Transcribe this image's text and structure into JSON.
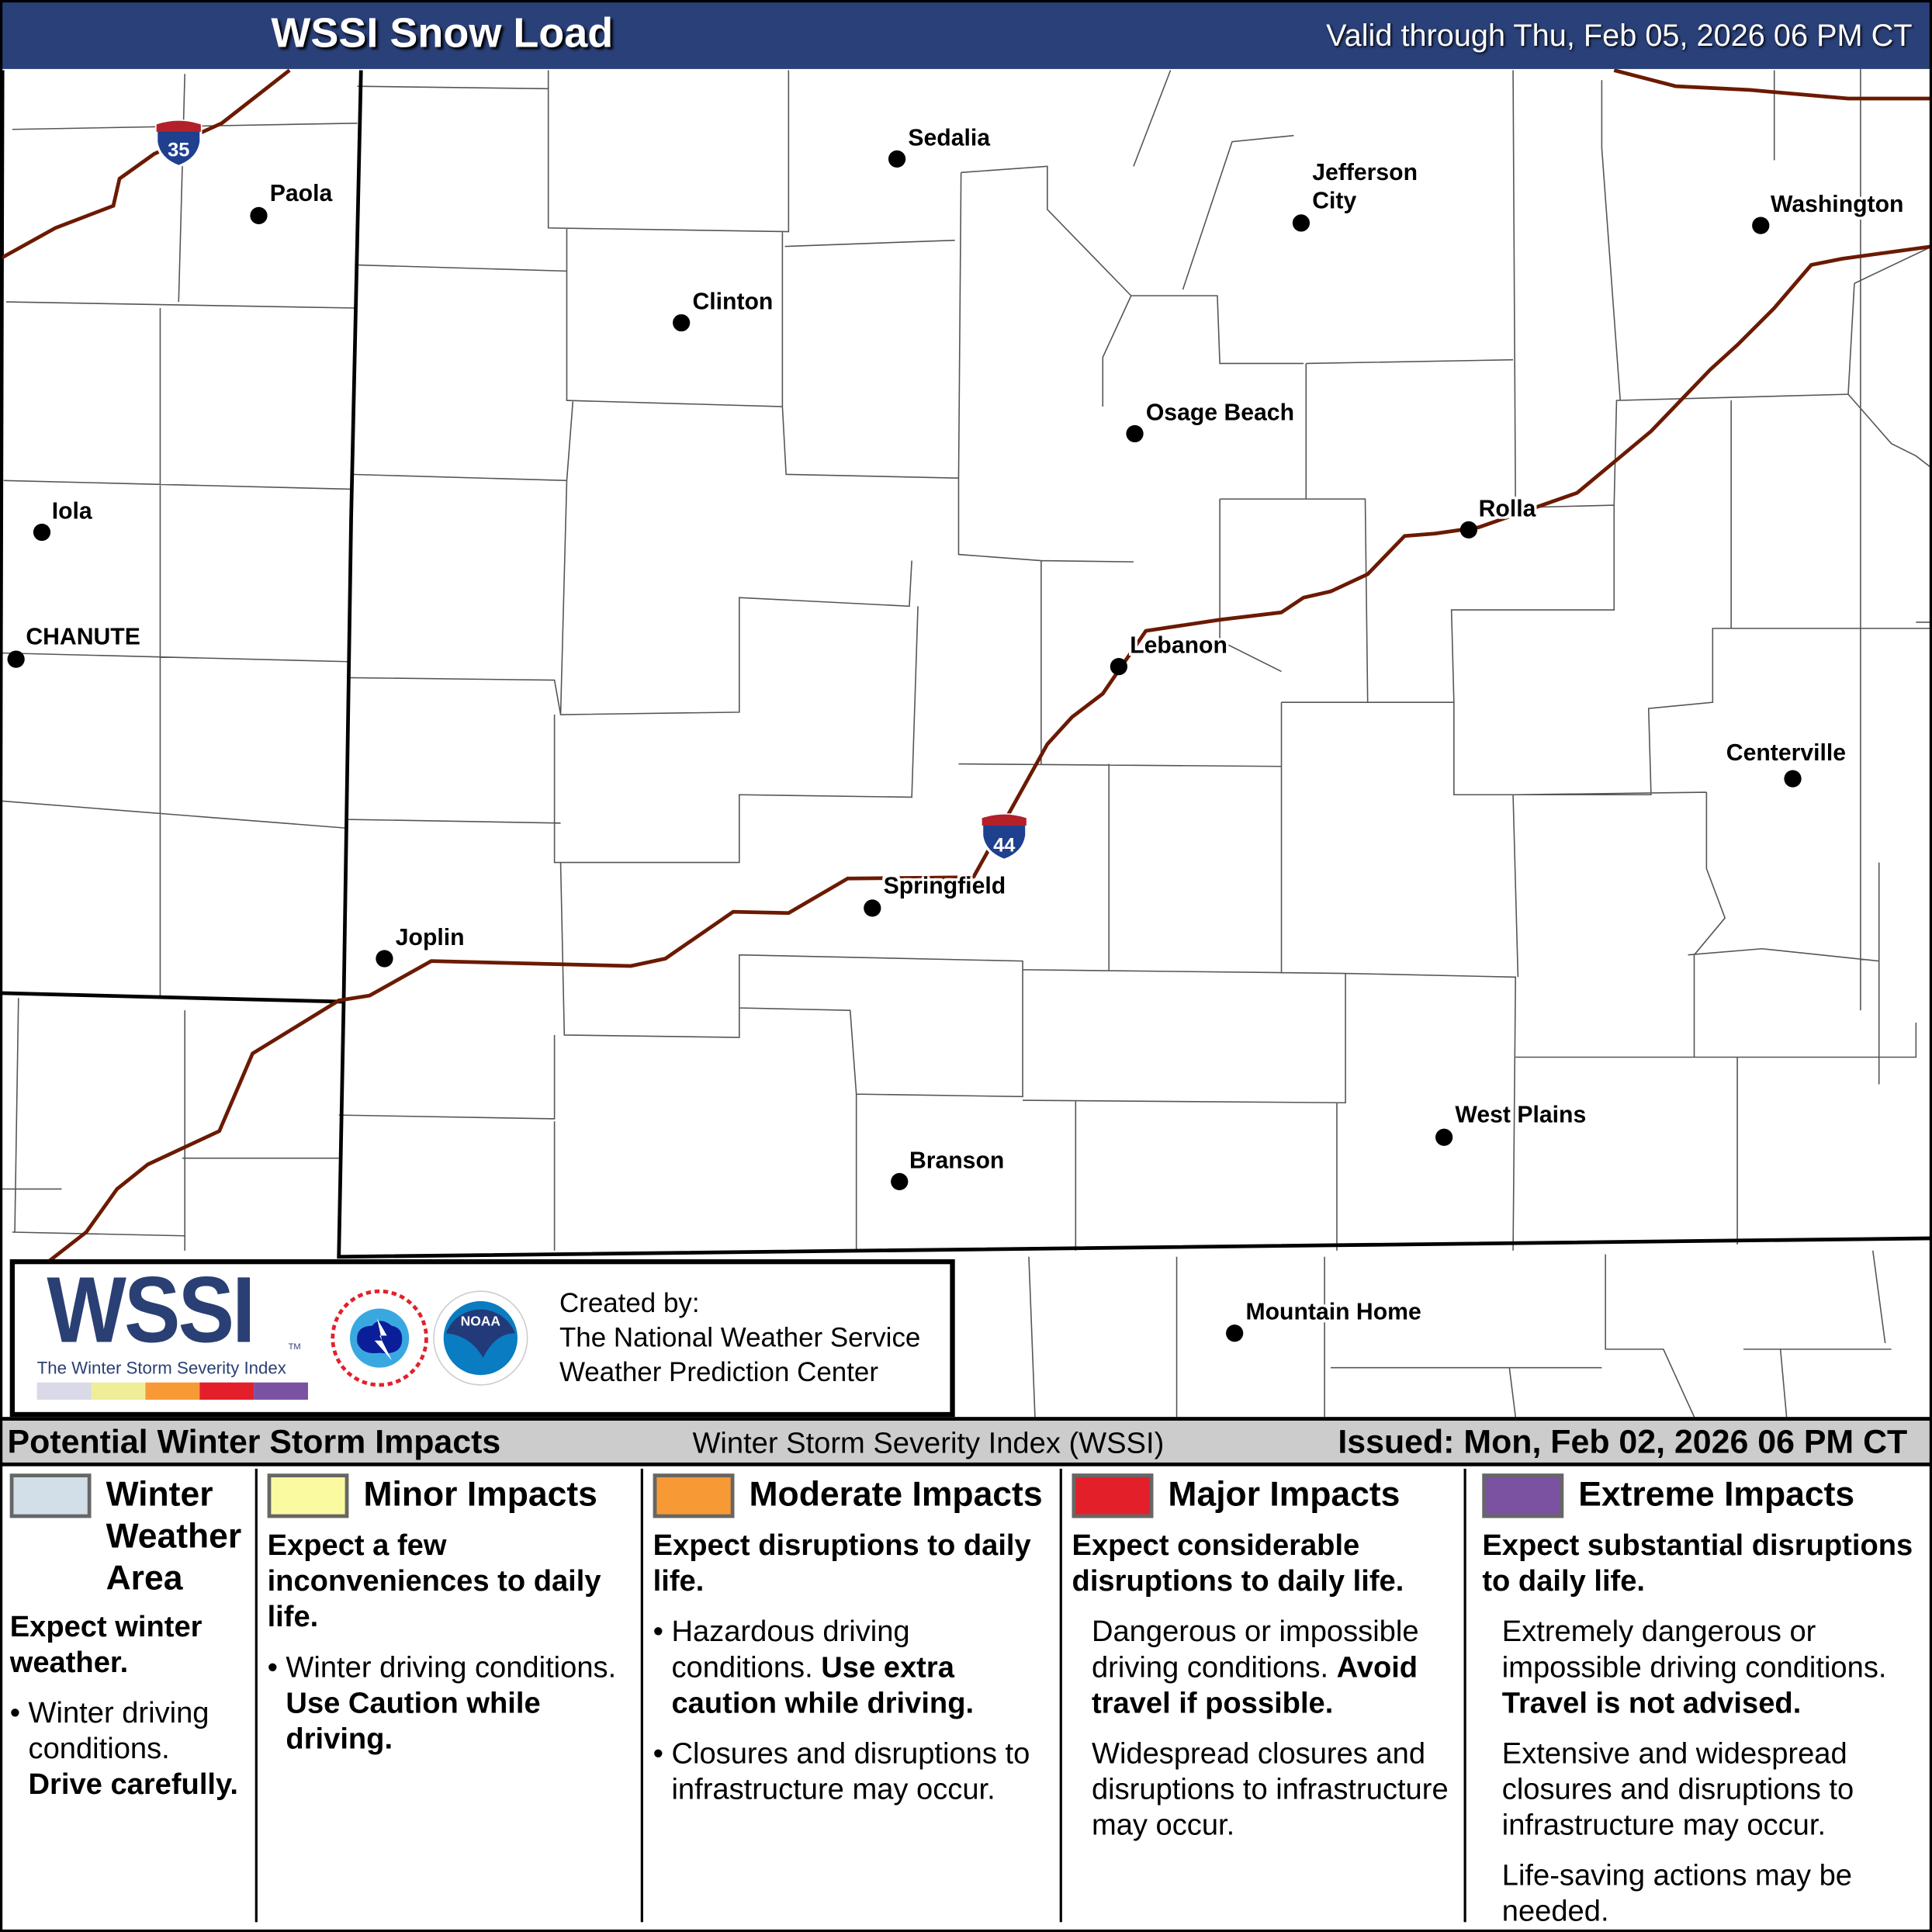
{
  "header": {
    "title": "WSSI Snow Load",
    "valid": "Valid through Thu, Feb 05, 2026 06 PM CT",
    "color": "#2a4079"
  },
  "map": {
    "interstates": [
      {
        "name": "interstate-35",
        "number": "35"
      },
      {
        "name": "interstate-44",
        "number": "44"
      }
    ],
    "highway_color": "#6b1a00",
    "cities": [
      {
        "name": "Sedalia"
      },
      {
        "name": "Paola"
      },
      {
        "name": "Jefferson City"
      },
      {
        "name": "Washington"
      },
      {
        "name": "Clinton"
      },
      {
        "name": "Osage Beach"
      },
      {
        "name": "Iola"
      },
      {
        "name": "Rolla"
      },
      {
        "name": "CHANUTE"
      },
      {
        "name": "Lebanon"
      },
      {
        "name": "Centerville"
      },
      {
        "name": "Springfield"
      },
      {
        "name": "Joplin"
      },
      {
        "name": "West Plains"
      },
      {
        "name": "Branson"
      },
      {
        "name": "Mountain Home"
      }
    ]
  },
  "logo": {
    "wordmark": "WSSI",
    "tm": "TM",
    "subtitle": "The Winter Storm Severity Index",
    "scale_colors": [
      "#d9d9e8",
      "#eeee99",
      "#f79a36",
      "#e3202a",
      "#7b52a1"
    ],
    "nws_seal": "NATIONAL WEATHER SERVICE",
    "noaa_seal": "NOAA",
    "created_by": "Created by:",
    "org1": "The National Weather Service",
    "org2": "Weather Prediction Center"
  },
  "legend": {
    "title": "Potential Winter Storm Impacts",
    "index_name": "Winter Storm Severity Index (WSSI)",
    "issued": "Issued: Mon, Feb 02, 2026 06 PM CT",
    "categories": [
      {
        "label": "Winter Weather Area",
        "color": "#d3dfe8",
        "summary": "Expect winter weather.",
        "bullets": [
          {
            "text": "Winter driving conditions.",
            "bold": "Drive carefully."
          }
        ]
      },
      {
        "label": "Minor Impacts",
        "color": "#fafaa0",
        "summary": "Expect a few inconveniences to daily life.",
        "bullets": [
          {
            "text": "Winter driving conditions.",
            "bold": "Use Caution while driving."
          }
        ]
      },
      {
        "label": "Moderate Impacts",
        "color": "#f79a36",
        "summary": "Expect disruptions to daily life.",
        "bullets": [
          {
            "text": "Hazardous driving conditions.",
            "bold": "Use extra caution while driving."
          },
          {
            "text": "Closures and disruptions to infrastructure may occur.",
            "bold": ""
          }
        ]
      },
      {
        "label": "Major Impacts",
        "color": "#e3202a",
        "summary": "Expect considerable disruptions to daily life.",
        "bullets": [
          {
            "text": "Dangerous or impossible driving conditions.",
            "bold": "Avoid travel if possible."
          },
          {
            "text": "Widespread closures and disruptions to infrastructure may occur.",
            "bold": ""
          }
        ]
      },
      {
        "label": "Extreme Impacts",
        "color": "#7b52a1",
        "summary": "Expect substantial disruptions to daily life.",
        "bullets": [
          {
            "text": "Extremely dangerous or impossible driving conditions.",
            "bold": "Travel is not advised."
          },
          {
            "text": "Extensive and widespread closures and disruptions to infrastructure may occur.",
            "bold": ""
          },
          {
            "text": "Life-saving actions may be needed.",
            "bold": ""
          }
        ]
      }
    ]
  }
}
